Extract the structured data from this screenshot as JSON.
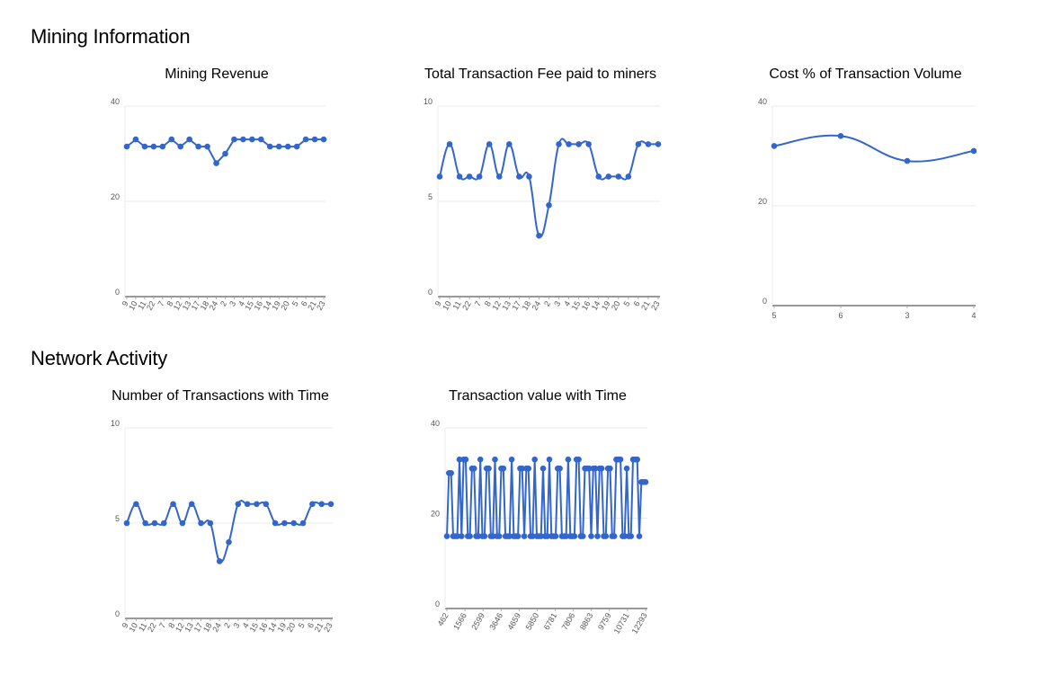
{
  "sections": {
    "mining": "Mining Information",
    "network": "Network Activity"
  },
  "colors": {
    "series": "#3366cc",
    "grid": "#ebebeb",
    "axis": "#333333",
    "tick": "#555555"
  },
  "chart_data": [
    {
      "id": "mining-revenue",
      "type": "line",
      "title": "Mining Revenue",
      "xlabel": "",
      "ylabel": "",
      "ylim": [
        0,
        40
      ],
      "yticks": [
        0,
        20,
        40
      ],
      "curve": "straight",
      "x": [
        "9",
        "10",
        "11",
        "22",
        "7",
        "8",
        "12",
        "13",
        "17",
        "18",
        "24",
        "2",
        "3",
        "4",
        "15",
        "16",
        "14",
        "19",
        "20",
        "5",
        "6",
        "21",
        "23"
      ],
      "values": [
        31.5,
        33,
        31.5,
        31.5,
        31.5,
        33,
        31.5,
        33,
        31.5,
        31.5,
        28,
        30,
        33,
        33,
        33,
        33,
        31.5,
        31.5,
        31.5,
        31.5,
        33,
        33,
        33
      ],
      "grid": true,
      "legend": "none"
    },
    {
      "id": "total-transaction-fee",
      "type": "line",
      "title": "Total Transaction Fee paid to miners",
      "xlabel": "",
      "ylabel": "",
      "ylim": [
        0,
        10
      ],
      "yticks": [
        0,
        5,
        10
      ],
      "curve": "smooth",
      "x": [
        "9",
        "10",
        "11",
        "22",
        "7",
        "8",
        "12",
        "13",
        "17",
        "18",
        "24",
        "2",
        "3",
        "4",
        "15",
        "16",
        "14",
        "19",
        "20",
        "5",
        "6",
        "21",
        "23"
      ],
      "values": [
        6.3,
        8,
        6.3,
        6.3,
        6.3,
        8,
        6.3,
        8,
        6.3,
        6.3,
        3.2,
        4.8,
        8,
        8,
        8,
        8,
        6.3,
        6.3,
        6.3,
        6.3,
        8,
        8,
        8
      ],
      "grid": true,
      "legend": "none"
    },
    {
      "id": "cost-percent-volume",
      "type": "line",
      "title": "Cost % of Transaction Volume",
      "xlabel": "",
      "ylabel": "",
      "ylim": [
        0,
        40
      ],
      "yticks": [
        0,
        20,
        40
      ],
      "curve": "smooth",
      "x": [
        "5",
        "6",
        "3",
        "4"
      ],
      "values": [
        32,
        34,
        29,
        31
      ],
      "grid": true,
      "legend": "none"
    },
    {
      "id": "number-of-transactions",
      "type": "line",
      "title": "Number of Transactions with Time",
      "xlabel": "",
      "ylabel": "",
      "ylim": [
        0,
        10
      ],
      "yticks": [
        0,
        5,
        10
      ],
      "curve": "smooth",
      "x": [
        "9",
        "10",
        "11",
        "22",
        "7",
        "8",
        "12",
        "13",
        "17",
        "18",
        "24",
        "2",
        "3",
        "4",
        "15",
        "16",
        "14",
        "19",
        "20",
        "5",
        "6",
        "21",
        "23"
      ],
      "values": [
        5,
        6,
        5,
        5,
        5,
        6,
        5,
        6,
        5,
        5,
        3,
        4,
        6,
        6,
        6,
        6,
        5,
        5,
        5,
        5,
        6,
        6,
        6
      ],
      "grid": true,
      "legend": "none"
    },
    {
      "id": "transaction-value",
      "type": "line",
      "title": "Transaction value with Time",
      "xlabel": "",
      "ylabel": "",
      "ylim": [
        0,
        40
      ],
      "yticks": [
        0,
        20,
        40
      ],
      "curve": "straight",
      "xticks": [
        "462",
        "1566",
        "2599",
        "3646",
        "4659",
        "5850",
        "6781",
        "7806",
        "8863",
        "9759",
        "10731",
        "12293"
      ],
      "values": [
        16,
        30,
        30,
        16,
        16,
        16,
        33,
        16,
        33,
        33,
        16,
        16,
        31,
        31,
        16,
        16,
        33,
        16,
        16,
        31,
        31,
        16,
        16,
        33,
        16,
        16,
        31,
        31,
        16,
        16,
        16,
        33,
        16,
        16,
        16,
        31,
        31,
        16,
        31,
        31,
        16,
        16,
        33,
        16,
        16,
        16,
        31,
        16,
        16,
        33,
        16,
        16,
        16,
        31,
        31,
        16,
        16,
        16,
        33,
        16,
        16,
        16,
        33,
        33,
        16,
        16,
        31,
        31,
        31,
        16,
        31,
        31,
        16,
        31,
        31,
        16,
        16,
        31,
        31,
        16,
        16,
        33,
        33,
        33,
        16,
        16,
        31,
        16,
        16,
        33,
        33,
        33,
        16,
        28,
        28,
        28
      ],
      "grid": true,
      "legend": "none"
    }
  ]
}
